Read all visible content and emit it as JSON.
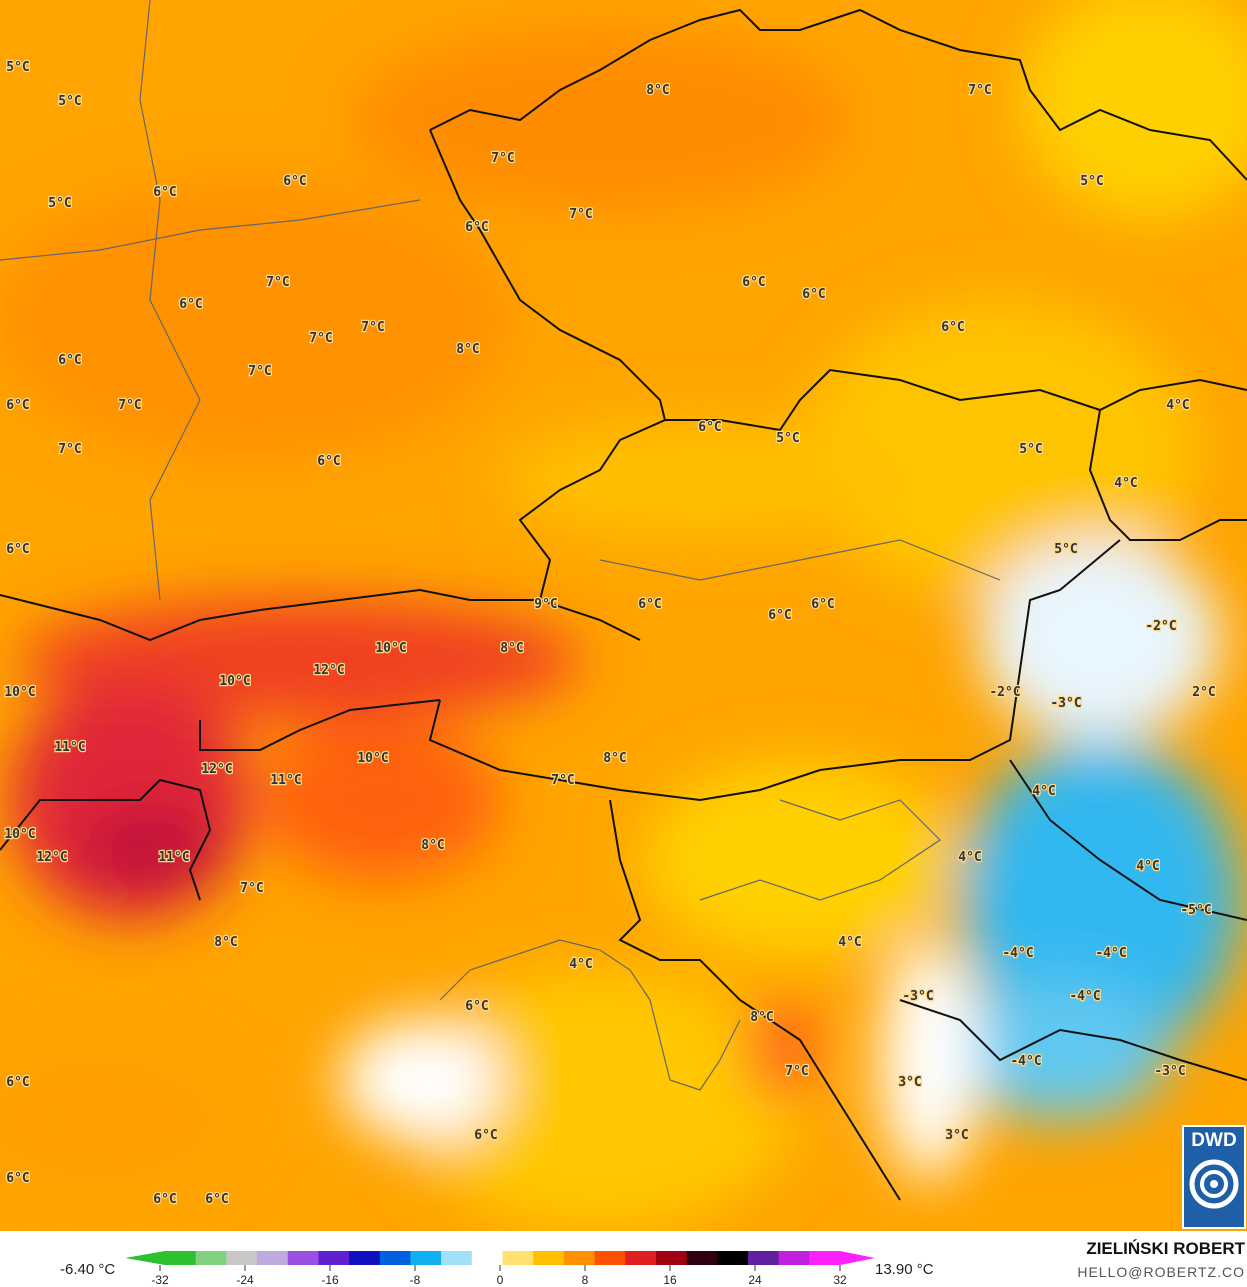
{
  "map": {
    "variable_unit": "°C",
    "labels": [
      "5°C",
      "5°C",
      "8°C",
      "7°C",
      "7°C",
      "6°C",
      "6°C",
      "5°C",
      "5°C",
      "7°C",
      "6°C",
      "7°C",
      "6°C",
      "6°C",
      "6°C",
      "6°C",
      "7°C",
      "7°C",
      "8°C",
      "6°C",
      "7°C",
      "6°C",
      "7°C",
      "4°C",
      "6°C",
      "5°C",
      "7°C",
      "5°C",
      "6°C",
      "4°C",
      "6°C",
      "5°C",
      "9°C",
      "6°C",
      "6°C",
      "6°C",
      "-2°C",
      "10°C",
      "8°C",
      "12°C",
      "10°C",
      "10°C",
      "-2°C",
      "-3°C",
      "2°C",
      "11°C",
      "10°C",
      "8°C",
      "12°C",
      "11°C",
      "7°C",
      "4°C",
      "10°C",
      "8°C",
      "12°C",
      "11°C",
      "4°C",
      "4°C",
      "7°C",
      "-5°C",
      "8°C",
      "4°C",
      "-4°C",
      "-4°C",
      "4°C",
      "-3°C",
      "-4°C",
      "6°C",
      "8°C",
      "-4°C",
      "-3°C",
      "6°C",
      "7°C",
      "3°C",
      "6°C",
      "3°C",
      "6°C",
      "6°C",
      "6°C"
    ]
  },
  "legend": {
    "min_label": "-6.40 °C",
    "max_label": "13.90 °C",
    "ticks": [
      "-32",
      "-24",
      "-16",
      "-8",
      "0",
      "8",
      "16",
      "24",
      "32"
    ],
    "colors": [
      "#2fc02f",
      "#7fd07f",
      "#c8c8c8",
      "#c0a8e0",
      "#9a50e0",
      "#6020d0",
      "#1010c0",
      "#0060e0",
      "#10b0f0",
      "#a0e0f8",
      "#ffffff",
      "#ffe070",
      "#ffc000",
      "#ff9000",
      "#ff5000",
      "#e02020",
      "#a00010",
      "#300010",
      "#000000",
      "#6020a0",
      "#c020e0",
      "#ff20ff"
    ]
  },
  "credits": {
    "author": "ZIELIŃSKI ROBERT",
    "email": "HELLO@ROBERTZ.CO",
    "logo": "DWD"
  }
}
